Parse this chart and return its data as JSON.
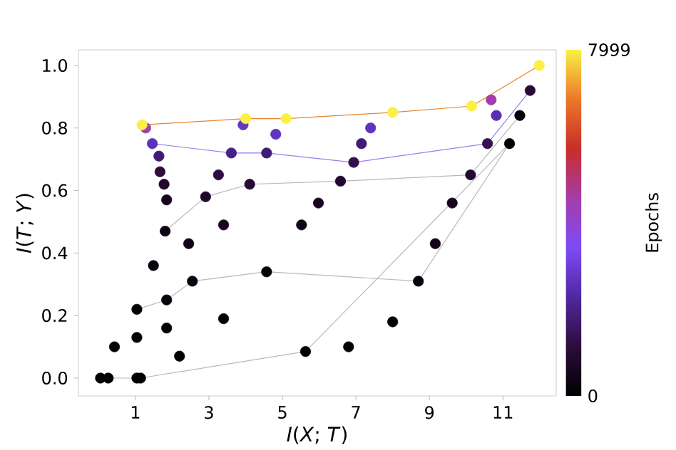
{
  "chart_data": {
    "type": "scatter",
    "xlabel": "*I*(*X*; *T*)",
    "ylabel": "*I*(*T*; *Y*)",
    "clabel": "Epochs",
    "xlim": [
      -0.55,
      12.45
    ],
    "ylim": [
      -0.057,
      1.05
    ],
    "xticks": [
      1,
      3,
      5,
      7,
      9,
      11
    ],
    "yticks": [
      {
        "value": 0,
        "label": "0.0"
      },
      {
        "value": 0.2,
        "label": "0.2"
      },
      {
        "value": 0.4,
        "label": "0.4"
      },
      {
        "value": 0.6,
        "label": "0.6"
      },
      {
        "value": 0.8,
        "label": "0.8"
      },
      {
        "value": 1,
        "label": "1.0"
      }
    ],
    "clim": [
      0,
      7999
    ],
    "cticks": [
      0,
      7999
    ],
    "series": [
      {
        "type": "line",
        "color": "#b8b8b8",
        "x": [
          0.05,
          0.26,
          1.04,
          1.14,
          5.63,
          11.18
        ],
        "values": [
          0,
          0,
          0,
          0,
          0.085,
          0.75
        ]
      },
      {
        "type": "line",
        "color": "#b8b8b8",
        "x": [
          1.04,
          1.85,
          2.55,
          4.57,
          8.7,
          11.18
        ],
        "values": [
          0.22,
          0.25,
          0.31,
          0.34,
          0.31,
          0.75
        ]
      },
      {
        "type": "line",
        "color": "#b8b8b8",
        "x": [
          1.81,
          2.91,
          4.11,
          6.58,
          10.12,
          11.46
        ],
        "values": [
          0.47,
          0.58,
          0.62,
          0.63,
          0.65,
          0.84
        ]
      },
      {
        "type": "line",
        "color": "#9a7cf0",
        "x": [
          1.46,
          3.61,
          4.57,
          6.94,
          10.58,
          11.74
        ],
        "values": [
          0.75,
          0.72,
          0.72,
          0.69,
          0.75,
          0.92
        ]
      },
      {
        "type": "line",
        "color": "#e8842c",
        "x": [
          1.18,
          4.0,
          5.1,
          8.0,
          10.15,
          11.99
        ],
        "values": [
          0.81,
          0.83,
          0.83,
          0.85,
          0.87,
          1.0
        ]
      },
      {
        "marker": "circle",
        "x": [
          0.05,
          0.43,
          1.04,
          1.49,
          1.81,
          1.85,
          1.78,
          1.67,
          1.64,
          1.46,
          1.28,
          1.18
        ],
        "values": [
          0,
          0.1,
          0.22,
          0.36,
          0.47,
          0.57,
          0.62,
          0.66,
          0.71,
          0.75,
          0.8,
          0.81
        ],
        "cvalues": [
          0,
          50,
          100,
          200,
          300,
          500,
          800,
          1200,
          1800,
          2600,
          4500,
          7999
        ],
        "colors": [
          "#000000",
          "#020103",
          "#040105",
          "#08020a",
          "#0c0310",
          "#14051a",
          "#20082a",
          "#2f0d41",
          "#411c76",
          "#5c32b7",
          "#a33daf",
          "#faf046"
        ]
      },
      {
        "marker": "circle",
        "x": [
          0.26,
          1.04,
          1.85,
          2.45,
          2.91,
          3.26,
          3.61,
          3.93,
          4.0
        ],
        "values": [
          0,
          0.13,
          0.25,
          0.43,
          0.58,
          0.65,
          0.72,
          0.81,
          0.83
        ],
        "cvalues": [
          0,
          100,
          200,
          400,
          800,
          1200,
          2000,
          2800,
          7999
        ],
        "colors": [
          "#000000",
          "#040105",
          "#08020a",
          "#100415",
          "#20082a",
          "#2f0d41",
          "#472187",
          "#6438c6",
          "#faf046"
        ]
      },
      {
        "marker": "circle",
        "x": [
          1.04,
          1.85,
          2.55,
          3.4,
          4.11,
          4.57,
          4.82,
          5.1
        ],
        "values": [
          0,
          0.16,
          0.31,
          0.49,
          0.62,
          0.72,
          0.78,
          0.83
        ],
        "cvalues": [
          0,
          100,
          300,
          600,
          1000,
          1800,
          2700,
          7999
        ],
        "colors": [
          "#000000",
          "#040105",
          "#0c0310",
          "#18061f",
          "#270b34",
          "#411c76",
          "#6035bf",
          "#faf046"
        ]
      },
      {
        "marker": "circle",
        "x": [
          1.14,
          2.2,
          3.4,
          4.57,
          5.52,
          5.98,
          6.58,
          6.94,
          7.15,
          7.4,
          8.0
        ],
        "values": [
          0,
          0.07,
          0.19,
          0.34,
          0.49,
          0.56,
          0.63,
          0.69,
          0.75,
          0.8,
          0.85
        ],
        "cvalues": [
          0,
          50,
          100,
          200,
          400,
          600,
          900,
          1300,
          1800,
          2700,
          7999
        ],
        "colors": [
          "#000000",
          "#020103",
          "#040105",
          "#08020a",
          "#100415",
          "#18061f",
          "#23092f",
          "#32104a",
          "#411c76",
          "#6035bf",
          "#faf046"
        ]
      },
      {
        "marker": "circle",
        "x": [
          5.63,
          6.8,
          8.0,
          8.7,
          9.16,
          9.62,
          10.12,
          10.58,
          10.82,
          10.68,
          10.15
        ],
        "values": [
          0.085,
          0.1,
          0.18,
          0.31,
          0.43,
          0.56,
          0.65,
          0.75,
          0.84,
          0.89,
          0.87
        ],
        "cvalues": [
          0,
          50,
          100,
          200,
          400,
          600,
          900,
          1400,
          2500,
          4500,
          7999
        ],
        "colors": [
          "#000000",
          "#020103",
          "#040105",
          "#08020a",
          "#100415",
          "#18061f",
          "#23092f",
          "#351253",
          "#582fb0",
          "#a33daf",
          "#faf046"
        ]
      },
      {
        "marker": "circle",
        "x": [
          11.18,
          11.46,
          11.74,
          11.99
        ],
        "values": [
          0.75,
          0.84,
          0.92,
          1.0
        ],
        "cvalues": [
          0,
          200,
          1000,
          7999
        ],
        "colors": [
          "#000000",
          "#08020a",
          "#270b34",
          "#faf046"
        ]
      }
    ]
  }
}
